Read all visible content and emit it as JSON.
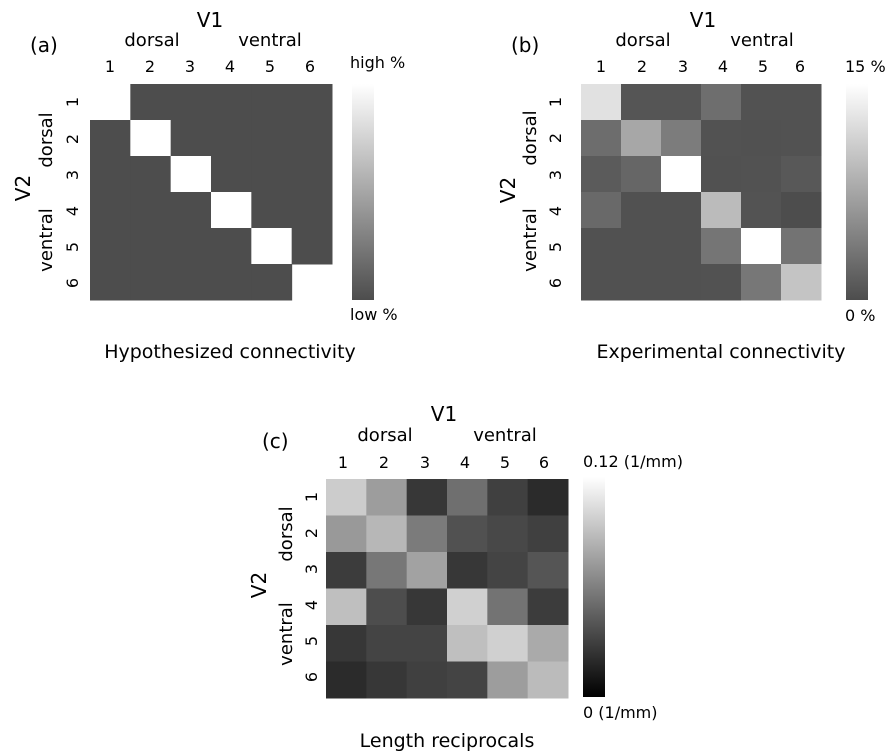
{
  "chart_data": [
    {
      "type": "heatmap",
      "panel_label": "(a)",
      "title": "Hypothesized connectivity",
      "col_axis": {
        "label": "V1",
        "groups": [
          "dorsal",
          "ventral"
        ],
        "ticks": [
          "1",
          "2",
          "3",
          "4",
          "5",
          "6"
        ]
      },
      "row_axis": {
        "label": "V2",
        "groups": [
          "dorsal",
          "ventral"
        ],
        "ticks": [
          "1",
          "2",
          "3",
          "4",
          "5",
          "6"
        ]
      },
      "colorbar": {
        "top_label": "high %",
        "bottom_label": "low %",
        "colors": [
          "#4d4d4d",
          "#ffffff"
        ]
      },
      "values": [
        [
          null,
          0,
          0,
          0,
          0,
          0
        ],
        [
          0,
          1,
          0,
          0,
          0,
          0
        ],
        [
          0,
          0,
          1,
          0,
          0,
          0
        ],
        [
          0,
          0,
          0,
          1,
          0,
          0
        ],
        [
          0,
          0,
          0,
          0,
          1,
          0
        ],
        [
          0,
          0,
          0,
          0,
          0,
          null
        ]
      ],
      "vmin": 0,
      "vmax": 1
    },
    {
      "type": "heatmap",
      "panel_label": "(b)",
      "title": "Experimental connectivity",
      "col_axis": {
        "label": "V1",
        "groups": [
          "dorsal",
          "ventral"
        ],
        "ticks": [
          "1",
          "2",
          "3",
          "4",
          "5",
          "6"
        ]
      },
      "row_axis": {
        "label": "V2",
        "groups": [
          "dorsal",
          "ventral"
        ],
        "ticks": [
          "1",
          "2",
          "3",
          "4",
          "5",
          "6"
        ]
      },
      "colorbar": {
        "top_label": "15 %",
        "bottom_label": "0 %",
        "colors": [
          "#4d4d4d",
          "#ffffff"
        ]
      },
      "values": [
        [
          12.5,
          0.7,
          0.7,
          2.8,
          0.4,
          0.4
        ],
        [
          2.7,
          7.6,
          4.0,
          0.4,
          0.3,
          0.4
        ],
        [
          1.2,
          2.1,
          15.0,
          0.3,
          0.4,
          0.9
        ],
        [
          2.4,
          0.3,
          0.3,
          9.3,
          0.5,
          0.0
        ],
        [
          0.3,
          0.3,
          0.3,
          3.4,
          15.0,
          3.2
        ],
        [
          0.3,
          0.3,
          0.3,
          0.4,
          3.5,
          10.0
        ]
      ],
      "vmin": 0,
      "vmax": 15
    },
    {
      "type": "heatmap",
      "panel_label": "(c)",
      "title": "Length reciprocals",
      "col_axis": {
        "label": "V1",
        "groups": [
          "dorsal",
          "ventral"
        ],
        "ticks": [
          "1",
          "2",
          "3",
          "4",
          "5",
          "6"
        ]
      },
      "row_axis": {
        "label": "V2",
        "groups": [
          "dorsal",
          "ventral"
        ],
        "ticks": [
          "1",
          "2",
          "3",
          "4",
          "5",
          "6"
        ]
      },
      "colorbar": {
        "top_label": "0.12 (1/mm)",
        "bottom_label": "0 (1/mm)",
        "colors": [
          "#000000",
          "#ffffff"
        ]
      },
      "values": [
        [
          0.096,
          0.074,
          0.026,
          0.052,
          0.03,
          0.02
        ],
        [
          0.072,
          0.086,
          0.058,
          0.038,
          0.034,
          0.03
        ],
        [
          0.028,
          0.056,
          0.076,
          0.026,
          0.032,
          0.04
        ],
        [
          0.09,
          0.036,
          0.026,
          0.098,
          0.054,
          0.028
        ],
        [
          0.026,
          0.032,
          0.032,
          0.09,
          0.098,
          0.08
        ],
        [
          0.02,
          0.026,
          0.03,
          0.032,
          0.074,
          0.088
        ]
      ],
      "vmin": 0,
      "vmax": 0.12
    }
  ]
}
